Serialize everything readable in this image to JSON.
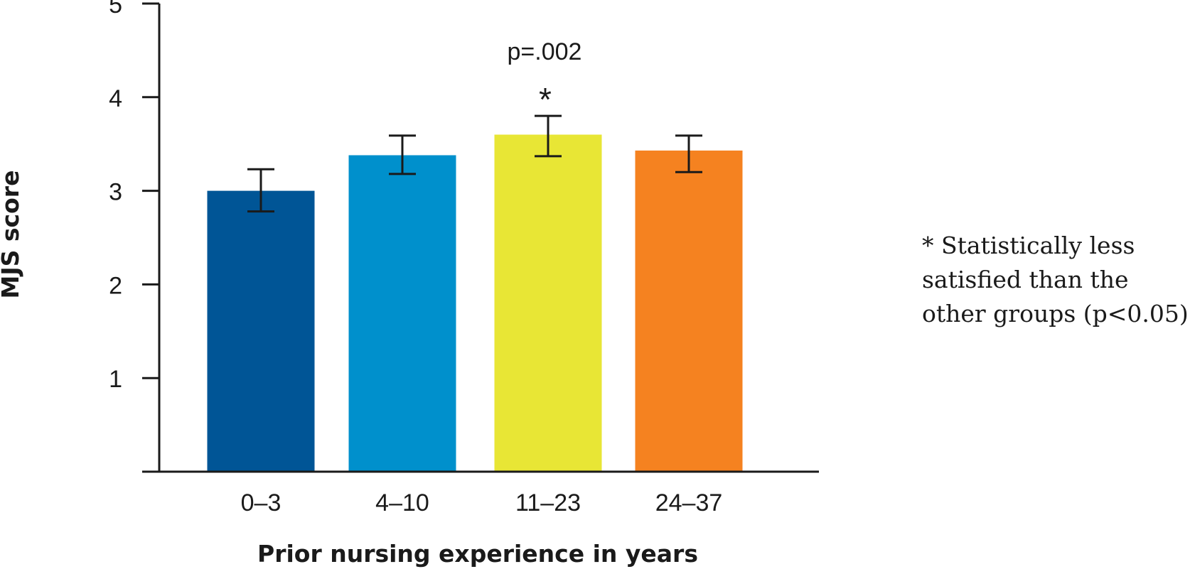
{
  "chart_data": {
    "type": "bar",
    "categories": [
      "0–3",
      "4–10",
      "11–23",
      "24–37"
    ],
    "values": [
      3.0,
      3.38,
      3.6,
      3.43
    ],
    "error_low": [
      2.78,
      3.18,
      3.37,
      3.2
    ],
    "error_high": [
      3.23,
      3.59,
      3.8,
      3.59
    ],
    "colors": [
      "#005596",
      "#0090cc",
      "#e8e635",
      "#f58220"
    ],
    "ylim": [
      0,
      5
    ],
    "yticks": [
      "1",
      "2",
      "3",
      "4",
      "5"
    ],
    "ylabel": "MJS score",
    "xlabel": "Prior nursing experience in years",
    "grid": false,
    "annotations": {
      "p_value": "p=.002",
      "significance_marker": "*",
      "marked_category": "11–23"
    },
    "footnote": "* Statistically less satisfied than the other groups (p<0.05)"
  }
}
